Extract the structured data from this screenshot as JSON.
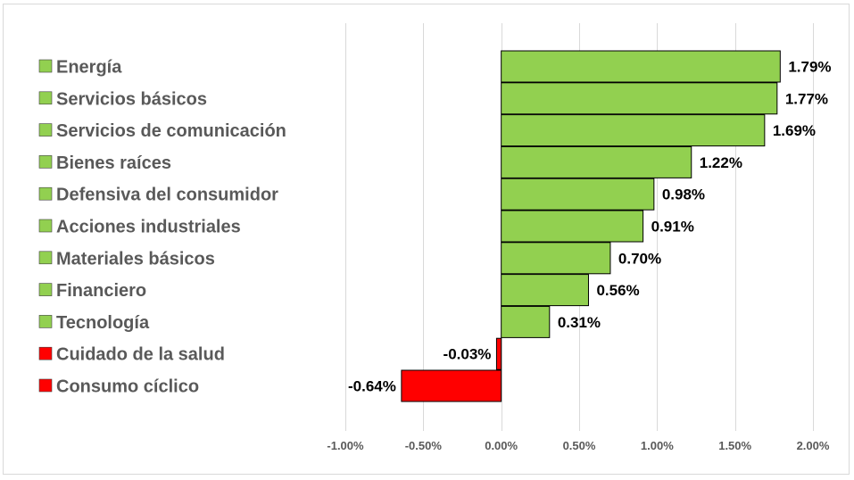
{
  "chart_data": {
    "type": "bar",
    "orientation": "horizontal",
    "title": "",
    "xlabel": "",
    "ylabel": "",
    "xlim": [
      -0.01,
      0.02
    ],
    "x_ticks": [
      -0.01,
      -0.005,
      0,
      0.005,
      0.01,
      0.015,
      0.02
    ],
    "x_tick_labels": [
      "-1.00%",
      "-0.50%",
      "0.00%",
      "0.50%",
      "1.00%",
      "1.50%",
      "2.00%"
    ],
    "grid": true,
    "legend": "none",
    "positive_color": "#92d050",
    "negative_color": "#ff0000",
    "categories": [
      "Energía",
      "Servicios básicos",
      "Servicios de comunicación",
      "Bienes raíces",
      "Defensiva del consumidor",
      "Acciones industriales",
      "Materiales básicos",
      "Financiero",
      "Tecnología",
      "Cuidado de la salud",
      "Consumo cíclico"
    ],
    "values": [
      0.0179,
      0.0177,
      0.0169,
      0.0122,
      0.0098,
      0.0091,
      0.007,
      0.0056,
      0.0031,
      -0.0003,
      -0.0064
    ],
    "value_labels": [
      "1.79%",
      "1.77%",
      "1.69%",
      "1.22%",
      "0.98%",
      "0.91%",
      "0.70%",
      "0.56%",
      "0.31%",
      "-0.03%",
      "-0.64%"
    ]
  }
}
